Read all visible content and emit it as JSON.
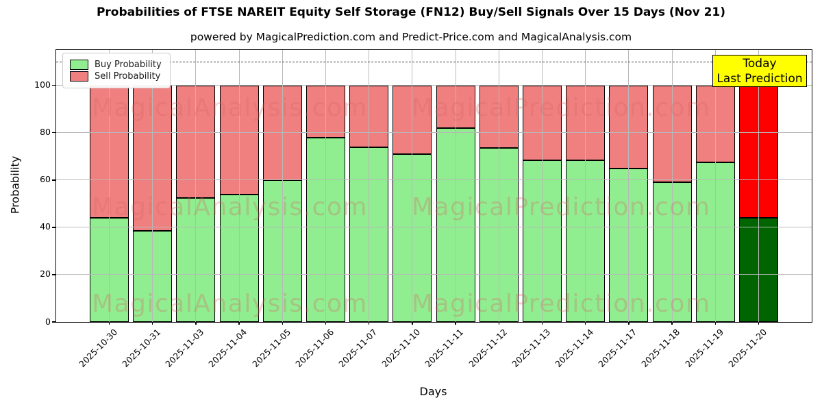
{
  "title": "Probabilities of FTSE NAREIT Equity Self Storage (FN12) Buy/Sell Signals Over 15 Days (Nov 21)",
  "subtitle": "powered by MagicalPrediction.com and Predict-Price.com and MagicalAnalysis.com",
  "legend": {
    "items": [
      {
        "label": "Buy Probability",
        "color": "#90ee90"
      },
      {
        "label": "Sell Probability",
        "color": "#f08080"
      }
    ]
  },
  "today_box": {
    "line1": "Today",
    "line2": "Last Prediction",
    "bg": "#ffff00"
  },
  "watermarks": {
    "left": "MagicalAnalysis.com",
    "right": "MagicalPrediction.com"
  },
  "colors": {
    "buy": "#90ee90",
    "sell": "#f08080",
    "today_buy": "#006400",
    "today_sell": "#ff0000",
    "grid": "#b8b8b8",
    "annotation_bg": "#ffff00"
  },
  "chart_data": {
    "type": "bar",
    "stacked": true,
    "categories": [
      "2025-10-30",
      "2025-10-31",
      "2025-11-03",
      "2025-11-04",
      "2025-11-05",
      "2025-11-06",
      "2025-11-07",
      "2025-11-10",
      "2025-11-11",
      "2025-11-12",
      "2025-11-13",
      "2025-11-14",
      "2025-11-17",
      "2025-11-18",
      "2025-11-19",
      "2025-11-20"
    ],
    "series": [
      {
        "name": "Buy Probability",
        "color": "#90ee90",
        "values": [
          44,
          38.5,
          52.5,
          54,
          60,
          78,
          74,
          71,
          82,
          73.5,
          68.5,
          68.5,
          65,
          59,
          67.5,
          44
        ]
      },
      {
        "name": "Sell Probability",
        "color": "#f08080",
        "values": [
          56,
          61.5,
          47.5,
          46,
          40,
          22,
          26,
          29,
          18,
          26.5,
          31.5,
          31.5,
          35,
          41,
          32.5,
          56
        ]
      }
    ],
    "today_bar": {
      "category": "2025-11-20",
      "index": 15,
      "buy_color": "#006400",
      "sell_color": "#ff0000"
    },
    "xlabel": "Days",
    "ylabel": "Probability",
    "yticks": [
      0,
      20,
      40,
      60,
      80,
      100
    ],
    "ylim": [
      0,
      115
    ],
    "dashed_line_y": 110,
    "grid": true,
    "legend_position": "upper left"
  }
}
